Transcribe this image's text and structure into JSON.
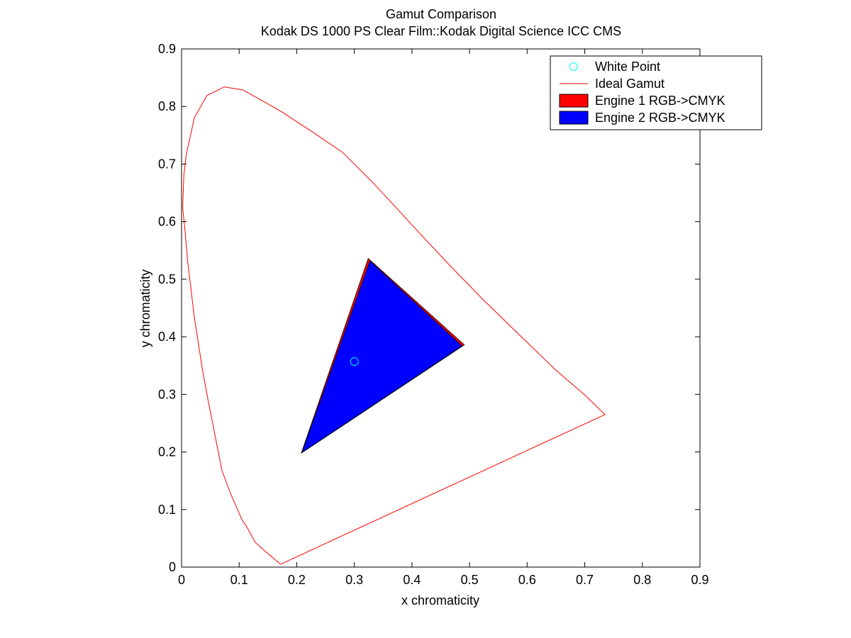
{
  "chart_data": {
    "type": "scatter",
    "title": "Gamut Comparison",
    "subtitle": "Kodak DS 1000 PS Clear Film::Kodak Digital Science ICC CMS",
    "xlabel": "x chromaticity",
    "ylabel": "y chromaticity",
    "xlim": [
      0,
      0.9
    ],
    "ylim": [
      0,
      0.9
    ],
    "xticks": [
      0,
      0.1,
      0.2,
      0.3,
      0.4,
      0.5,
      0.6,
      0.7,
      0.8,
      0.9
    ],
    "yticks": [
      0,
      0.1,
      0.2,
      0.3,
      0.4,
      0.5,
      0.6,
      0.7,
      0.8,
      0.9
    ],
    "xtick_labels": [
      "0",
      "0.1",
      "0.2",
      "0.3",
      "0.4",
      "0.5",
      "0.6",
      "0.7",
      "0.8",
      "0.9"
    ],
    "ytick_labels": [
      "0",
      "0.1",
      "0.2",
      "0.3",
      "0.4",
      "0.5",
      "0.6",
      "0.7",
      "0.8",
      "0.9"
    ],
    "grid": false,
    "legend_position": "top-right",
    "series": [
      {
        "name": "Engine 1 RGB->CMYK",
        "kind": "polygon",
        "color": "#ff0000",
        "points": [
          [
            0.324,
            0.536
          ],
          [
            0.491,
            0.386
          ],
          [
            0.208,
            0.198
          ]
        ]
      },
      {
        "name": "Engine 2 RGB->CMYK",
        "kind": "polygon",
        "color": "#0000ff",
        "points": [
          [
            0.327,
            0.532
          ],
          [
            0.487,
            0.384
          ],
          [
            0.209,
            0.199
          ]
        ]
      },
      {
        "name": "Ideal Gamut",
        "kind": "line",
        "color": "#ff0000",
        "points": [
          [
            0.172,
            0.005
          ],
          [
            0.16,
            0.015
          ],
          [
            0.14,
            0.032
          ],
          [
            0.128,
            0.043
          ],
          [
            0.112,
            0.072
          ],
          [
            0.105,
            0.082
          ],
          [
            0.085,
            0.128
          ],
          [
            0.07,
            0.168
          ],
          [
            0.045,
            0.295
          ],
          [
            0.036,
            0.345
          ],
          [
            0.022,
            0.435
          ],
          [
            0.011,
            0.528
          ],
          [
            0.006,
            0.584
          ],
          [
            0.002,
            0.625
          ],
          [
            0.004,
            0.68
          ],
          [
            0.008,
            0.715
          ],
          [
            0.022,
            0.78
          ],
          [
            0.044,
            0.819
          ],
          [
            0.074,
            0.834
          ],
          [
            0.106,
            0.829
          ],
          [
            0.135,
            0.813
          ],
          [
            0.175,
            0.79
          ],
          [
            0.23,
            0.754
          ],
          [
            0.28,
            0.72
          ],
          [
            0.33,
            0.67
          ],
          [
            0.36,
            0.638
          ],
          [
            0.404,
            0.59
          ],
          [
            0.46,
            0.53
          ],
          [
            0.52,
            0.468
          ],
          [
            0.59,
            0.4
          ],
          [
            0.65,
            0.342
          ],
          [
            0.7,
            0.299
          ],
          [
            0.735,
            0.265
          ],
          [
            0.172,
            0.005
          ]
        ]
      },
      {
        "name": "White Point",
        "kind": "marker",
        "color": "#00ffff",
        "points": [
          [
            0.3,
            0.357
          ]
        ]
      }
    ],
    "legend": [
      {
        "label": "White Point",
        "kind": "marker",
        "color": "#00ffff"
      },
      {
        "label": "Ideal Gamut",
        "kind": "line",
        "color": "#ff0000"
      },
      {
        "label": "Engine 1 RGB->CMYK",
        "kind": "patch",
        "color": "#ff0000"
      },
      {
        "label": "Engine 2 RGB->CMYK",
        "kind": "patch",
        "color": "#0000ff"
      }
    ]
  }
}
